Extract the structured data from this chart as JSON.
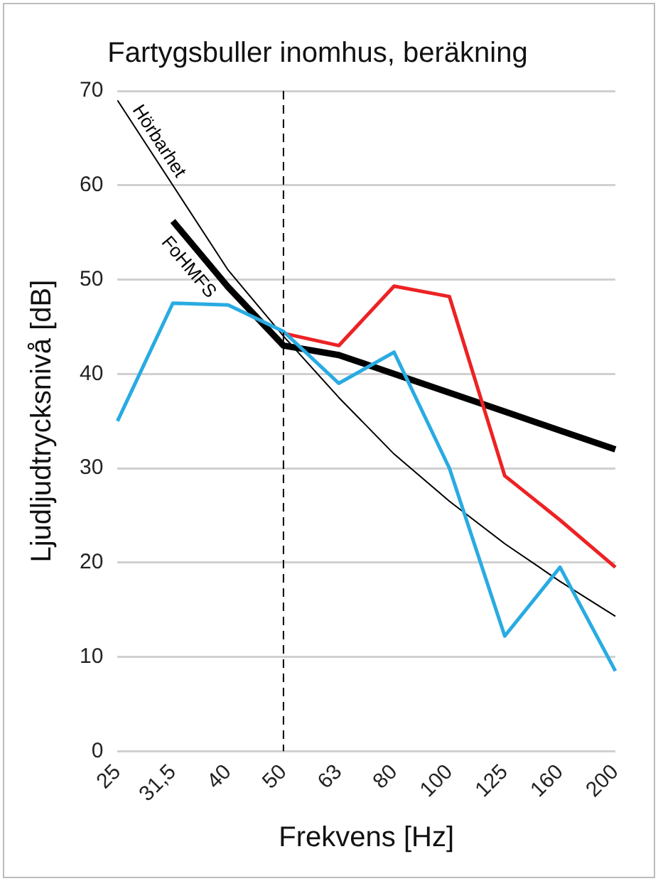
{
  "chart_data": {
    "type": "line",
    "title": "Fartygsbuller inomhus, beräkning",
    "xlabel": "Frekvens [Hz]",
    "ylabel": "Ljudljudtrycksnivå [dB]",
    "categories": [
      "25",
      "31,5",
      "40",
      "50",
      "63",
      "80",
      "100",
      "125",
      "160",
      "200"
    ],
    "series": [
      {
        "color": "#29abe2",
        "values": [
          35,
          47.5,
          47.3,
          44.5,
          39,
          42.3,
          30,
          12.2,
          19.5,
          8.5
        ]
      },
      {
        "color": "#ed2224",
        "values": [
          null,
          null,
          null,
          44.3,
          43,
          49.3,
          48.2,
          29.2,
          24.5,
          19.5
        ]
      },
      {
        "name": "Hörbarhet",
        "color": "#000000",
        "values": [
          69,
          60,
          51,
          44,
          37.5,
          31.5,
          26.5,
          22,
          18,
          14.3
        ]
      },
      {
        "name": "FoHMFS",
        "color": "#000000",
        "values": [
          null,
          56.2,
          49.2,
          43,
          42,
          40,
          38,
          36,
          34,
          32
        ]
      }
    ],
    "ylim": [
      0,
      70
    ],
    "yticks": [
      0,
      10,
      20,
      30,
      40,
      50,
      60,
      70
    ],
    "grid": "y",
    "legend": false,
    "marker": "none",
    "ref_lines": [
      {
        "axis": "x",
        "value": "50",
        "color": "#000000",
        "line_style": "dashed"
      }
    ]
  }
}
